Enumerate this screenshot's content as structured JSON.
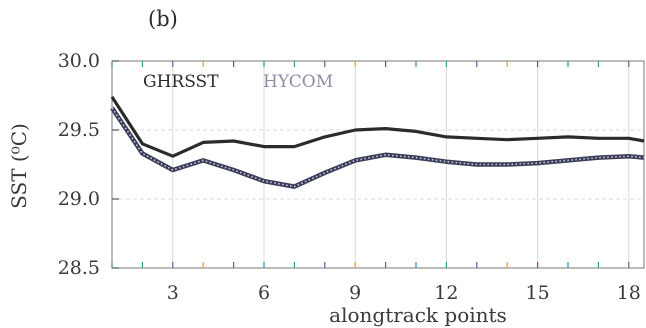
{
  "chart_data": {
    "type": "line",
    "panel_label": "(b)",
    "xlabel": "alongtrack points",
    "ylabel": "SST (⁰C)",
    "xlim": [
      1,
      18.5
    ],
    "ylim": [
      28.5,
      30.0
    ],
    "xticks": [
      3,
      6,
      9,
      12,
      15,
      18
    ],
    "yticks": [
      28.5,
      29.0,
      29.5,
      30.0
    ],
    "ytick_labels": [
      "28.5",
      "29.0",
      "29.5",
      "30.0"
    ],
    "grid": true,
    "legend_placement": "top-left",
    "x": [
      1,
      2,
      3,
      4,
      5,
      6,
      7,
      8,
      9,
      10,
      11,
      12,
      13,
      14,
      15,
      16,
      17,
      18,
      18.5
    ],
    "series": [
      {
        "name": "GHRSST",
        "color": "#2b2b2b",
        "style": "solid",
        "values": [
          29.74,
          29.4,
          29.31,
          29.41,
          29.42,
          29.38,
          29.38,
          29.45,
          29.5,
          29.51,
          29.49,
          29.45,
          29.44,
          29.43,
          29.44,
          29.45,
          29.44,
          29.44,
          29.42
        ]
      },
      {
        "name": "HYCOM",
        "color": "#7a7f95",
        "style": "dotted",
        "values": [
          29.66,
          29.33,
          29.21,
          29.28,
          29.21,
          29.13,
          29.09,
          29.19,
          29.28,
          29.32,
          29.3,
          29.27,
          29.25,
          29.25,
          29.26,
          29.28,
          29.3,
          29.31,
          29.3
        ]
      }
    ]
  }
}
